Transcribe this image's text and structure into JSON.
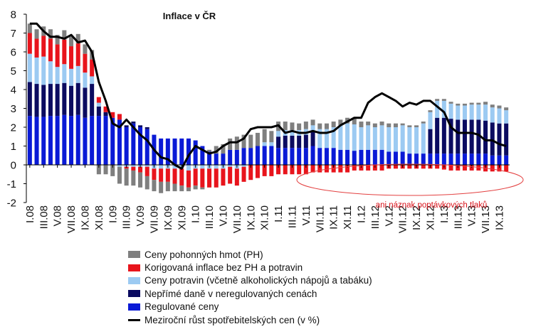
{
  "chart_data": {
    "type": "bar",
    "stacked": true,
    "title": "Inflace v ČR",
    "annotation": "ani náznak poptávkových tlaků",
    "x_tick_labels": [
      "I.08",
      "III.08",
      "V.08",
      "VII.08",
      "IX.08",
      "XI.08",
      "I.09",
      "III.09",
      "V.09",
      "VII.09",
      "IX.09",
      "XI.09",
      "I.10",
      "III.10",
      "V.10",
      "VII.10",
      "IX.10",
      "XI.10",
      "I.11",
      "III.11",
      "V.11",
      "VII.11",
      "IX.11",
      "XI.11",
      "I.12",
      "III.12",
      "V.12",
      "VII.12",
      "IX.12",
      "XI.12",
      "I.13",
      "III.13",
      "V.13",
      "VII.13",
      "IX.13"
    ],
    "y_ticks": [
      "-2",
      "-1",
      "0",
      "1",
      "2",
      "3",
      "4",
      "5",
      "6",
      "7",
      "8"
    ],
    "ylim": [
      -2,
      8
    ],
    "grid": false,
    "legend_position": "bottom",
    "series": [
      {
        "name": "Regulované ceny",
        "color": "#0a1ad6",
        "values": [
          2.6,
          2.55,
          2.55,
          2.6,
          2.6,
          2.65,
          2.6,
          2.65,
          2.5,
          2.6,
          2.6,
          2.6,
          2.5,
          2.4,
          2.0,
          2.2,
          2.0,
          1.9,
          1.6,
          1.4,
          1.4,
          1.4,
          1.4,
          1.4,
          1.3,
          1.0,
          0.7,
          0.6,
          0.6,
          0.8,
          0.8,
          0.9,
          0.9,
          1.0,
          1.0,
          1.0,
          0.9,
          0.9,
          0.9,
          0.9,
          0.9,
          1.0,
          0.9,
          0.9,
          0.9,
          0.8,
          0.8,
          0.75,
          0.8,
          0.8,
          0.8,
          0.8,
          0.7,
          0.7,
          0.7,
          0.6,
          0.6,
          0.6,
          0.6,
          0.6,
          0.6,
          0.6,
          0.6,
          0.6,
          0.6,
          0.6,
          0.6,
          0.5,
          0.5,
          0.5
        ]
      },
      {
        "name": "Nepřímé daně v neregulovaných cenách",
        "color": "#0b0b60",
        "values": [
          1.8,
          1.75,
          1.7,
          1.7,
          1.7,
          1.7,
          1.6,
          1.7,
          1.6,
          1.7,
          0.5,
          0.2,
          0,
          0,
          0.1,
          0.1,
          0.1,
          0.1,
          0,
          0,
          0,
          0,
          0,
          0,
          0,
          0,
          0,
          0,
          0,
          0,
          0,
          0,
          0,
          0,
          0,
          0,
          0.6,
          0.65,
          0.65,
          0.65,
          0.7,
          0.8,
          0,
          0,
          0,
          0,
          0,
          0,
          0,
          0,
          0,
          0,
          0,
          0,
          0,
          0,
          0,
          0,
          1.3,
          1.9,
          1.9,
          1.85,
          1.8,
          1.8,
          1.8,
          1.8,
          1.75,
          1.75,
          1.7,
          1.7
        ]
      },
      {
        "name": "Ceny potravin (včetně alkoholických nápojů a tabáku)",
        "color": "#9ccaf2",
        "values": [
          1.5,
          1.4,
          1.5,
          1.2,
          0.9,
          1.0,
          0.9,
          0.9,
          0.8,
          0.4,
          0.2,
          0,
          0,
          -0.1,
          -0.1,
          -0.1,
          -0.1,
          -0.1,
          -0.2,
          -0.2,
          -0.2,
          -0.2,
          -0.2,
          -0.3,
          -0.2,
          -0.2,
          -0.2,
          -0.2,
          -0.2,
          -0.1,
          -0.2,
          -0.1,
          0,
          0,
          0.2,
          0.2,
          0.3,
          0.3,
          0.3,
          0.3,
          0.3,
          0.3,
          1.0,
          1.0,
          1.1,
          1.3,
          1.4,
          1.4,
          1.2,
          1.3,
          1.2,
          1.3,
          1.3,
          1.3,
          1.4,
          1.4,
          1.4,
          1.6,
          0.9,
          0.9,
          0.9,
          0.8,
          0.75,
          0.75,
          0.8,
          0.8,
          0.85,
          0.8,
          0.8,
          0.7
        ]
      },
      {
        "name": "Korigovaná inflace bez PH a potravin",
        "color": "#e8141c",
        "values": [
          1.1,
          1.0,
          1.1,
          1.2,
          1.2,
          1.3,
          1.2,
          1.2,
          1.0,
          0.9,
          0.3,
          0.3,
          0.3,
          0.3,
          -0.1,
          -0.2,
          -0.3,
          -0.5,
          -0.6,
          -0.7,
          -0.7,
          -0.8,
          -0.9,
          -0.9,
          -0.9,
          -1.0,
          -1.0,
          -1.0,
          -0.9,
          -0.9,
          -0.9,
          -0.8,
          -0.8,
          -0.7,
          -0.6,
          -0.6,
          -0.5,
          -0.5,
          -0.5,
          -0.5,
          -0.5,
          -0.4,
          -0.4,
          -0.4,
          -0.4,
          -0.4,
          -0.4,
          -0.3,
          -0.3,
          -0.3,
          -0.3,
          -0.3,
          -0.2,
          -0.2,
          -0.2,
          -0.2,
          -0.2,
          -0.2,
          -0.2,
          -0.2,
          -0.25,
          -0.3,
          -0.3,
          -0.3,
          -0.3,
          -0.3,
          -0.35,
          -0.35,
          -0.35,
          -0.35
        ]
      },
      {
        "name": "Ceny pohonných hmot (PH)",
        "color": "#7f7f7f",
        "values": [
          0.5,
          0.5,
          0.5,
          0.5,
          0.5,
          0.5,
          0.5,
          0.5,
          0.5,
          0.5,
          -0.5,
          -0.5,
          -0.6,
          -0.9,
          -0.9,
          -0.8,
          -0.8,
          -0.7,
          -0.6,
          -0.6,
          -0.5,
          -0.4,
          -0.3,
          -0.2,
          -0.2,
          -0.1,
          0.1,
          0.4,
          0.5,
          0.6,
          0.7,
          0.7,
          0.7,
          0.7,
          0.7,
          0.6,
          0.5,
          0.45,
          0.4,
          0.35,
          0.4,
          0.3,
          0.3,
          0.3,
          0.3,
          0.3,
          0.3,
          0.3,
          0.3,
          0.2,
          0.2,
          0.2,
          0.2,
          0.2,
          0.1,
          0.1,
          0.1,
          0.1,
          0.1,
          0.1,
          0.1,
          0.1,
          0.1,
          0.1,
          0.1,
          0.1,
          0.15,
          0.15,
          0.15,
          0.15
        ]
      }
    ],
    "line": {
      "name": "Meziroční růst spotřebitelských cen (v %)",
      "color": "#000000",
      "values": [
        7.5,
        7.5,
        7.1,
        6.8,
        6.8,
        6.7,
        6.9,
        6.5,
        6.6,
        6.0,
        4.4,
        3.4,
        2.2,
        2.0,
        2.4,
        2.0,
        1.6,
        1.3,
        0.8,
        0.4,
        0.3,
        0.0,
        -0.2,
        0.5,
        1.0,
        0.8,
        0.6,
        0.7,
        1.0,
        1.2,
        1.2,
        1.4,
        1.9,
        2.0,
        2.0,
        2.0,
        2.1,
        1.7,
        1.8,
        1.7,
        1.7,
        1.8,
        1.7,
        1.7,
        1.8,
        2.1,
        2.3,
        2.5,
        2.5,
        3.3,
        3.6,
        3.8,
        3.6,
        3.4,
        3.1,
        3.3,
        3.2,
        3.4,
        3.4,
        3.1,
        2.8,
        2.0,
        1.7,
        1.7,
        1.7,
        1.6,
        1.3,
        1.3,
        1.1,
        1.0
      ]
    }
  },
  "legend": {
    "items": [
      {
        "label": "Ceny pohonných hmot (PH)",
        "color": "#7f7f7f",
        "kind": "bar"
      },
      {
        "label": "Korigovaná inflace bez PH a potravin",
        "color": "#e8141c",
        "kind": "bar"
      },
      {
        "label": "Ceny potravin (včetně alkoholických nápojů a tabáku)",
        "color": "#9ccaf2",
        "kind": "bar"
      },
      {
        "label": "Nepřímé daně v neregulovaných cenách",
        "color": "#0b0b60",
        "kind": "bar"
      },
      {
        "label": "Regulované ceny",
        "color": "#0a1ad6",
        "kind": "bar"
      },
      {
        "label": "Meziroční růst spotřebitelských cen (v %)",
        "color": "#000000",
        "kind": "line"
      }
    ]
  },
  "colors": {
    "annotation": "#d8131b",
    "axis": "#000000"
  }
}
